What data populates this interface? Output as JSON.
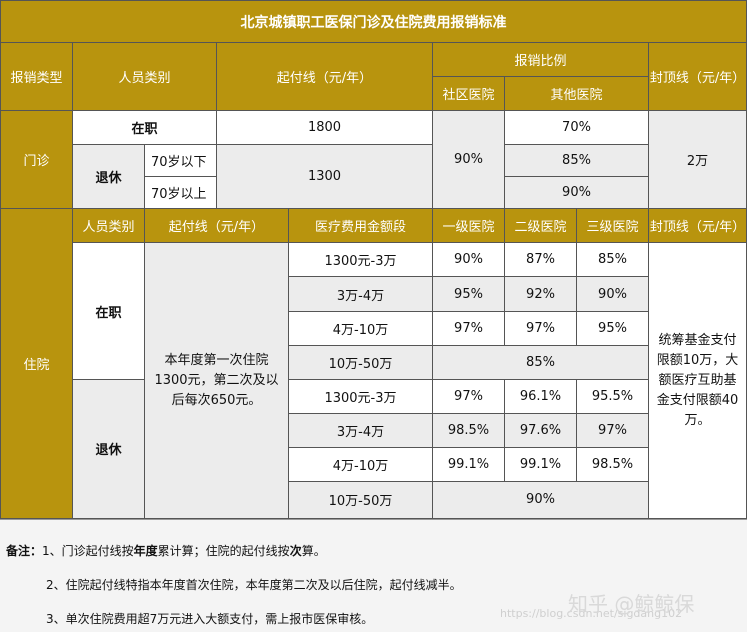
{
  "title": "北京城镇职工医保门诊及住院费用报销标准",
  "header": {
    "type": "报销类型",
    "personnel": "人员类别",
    "deductible": "起付线（元/年）",
    "ratio": "报销比例",
    "community": "社区医院",
    "other": "其他医院",
    "cap": "封顶线（元/年）"
  },
  "outpatient": {
    "label": "门诊",
    "employed": "在职",
    "retired": "退休",
    "under70": "70岁以下",
    "over70": "70岁以上",
    "employed_deductible": "1800",
    "retired_deductible": "1300",
    "community_rate": "90%",
    "employed_other": "70%",
    "under70_other": "85%",
    "over70_other": "90%",
    "cap": "2万"
  },
  "inpatient": {
    "label": "住院",
    "personnel": "人员类别",
    "deductible": "起付线（元/年）",
    "segment": "医疗费用金额段",
    "level1": "一级医院",
    "level2": "二级医院",
    "level3": "三级医院",
    "cap": "封顶线（元/年）",
    "employed": "在职",
    "retired": "退休",
    "deductible_text": "本年度第一次住院1300元，第二次及以后每次650元。",
    "cap_text": "统筹基金支付限额10万，大额医疗互助基金支付限额40万。",
    "employed_rows": [
      {
        "segment": "1300元-3万",
        "l1": "90%",
        "l2": "87%",
        "l3": "85%"
      },
      {
        "segment": "3万-4万",
        "l1": "95%",
        "l2": "92%",
        "l3": "90%"
      },
      {
        "segment": "4万-10万",
        "l1": "97%",
        "l2": "97%",
        "l3": "95%"
      },
      {
        "segment": "10万-50万",
        "all": "85%"
      }
    ],
    "retired_rows": [
      {
        "segment": "1300元-3万",
        "l1": "97%",
        "l2": "96.1%",
        "l3": "95.5%"
      },
      {
        "segment": "3万-4万",
        "l1": "98.5%",
        "l2": "97.6%",
        "l3": "97%"
      },
      {
        "segment": "4万-10万",
        "l1": "99.1%",
        "l2": "99.1%",
        "l3": "98.5%"
      },
      {
        "segment": "10万-50万",
        "all": "90%"
      }
    ]
  },
  "notes": {
    "prefix": "备注：",
    "n1_a": "1、门诊起付线按",
    "n1_b": "年度",
    "n1_c": "累计算；住院的起付线按",
    "n1_d": "次",
    "n1_e": "算。",
    "n2": "2、住院起付线特指本年度首次住院，本年度第二次及以后住院，起付线减半。",
    "n3": "3、单次住院费用超7万元进入大额支付，需上报市医保审核。"
  },
  "watermark": {
    "brand": "知乎 @鲸鲸保",
    "url": "https://blog.csdn.net/sigdang102"
  }
}
